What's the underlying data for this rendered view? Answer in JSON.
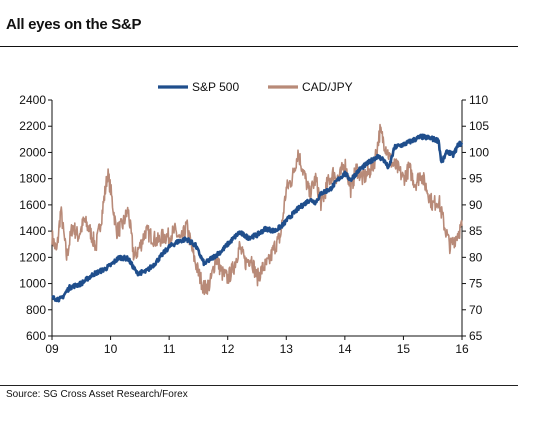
{
  "title": "All eyes on the S&P",
  "source": "Source: SG Cross Asset Research/Forex",
  "chart_data": {
    "type": "line",
    "title": "All eyes on the S&P",
    "x_tick_labels": [
      "09",
      "10",
      "11",
      "12",
      "13",
      "14",
      "15",
      "16"
    ],
    "xlim": [
      2009.0,
      2016.0
    ],
    "y_left_ticks": [
      "2400",
      "2200",
      "2000",
      "1800",
      "1600",
      "1400",
      "1200",
      "1000",
      "800",
      "600"
    ],
    "y_left_lim": [
      600,
      2400
    ],
    "y_right_ticks": [
      "110",
      "105",
      "100",
      "95",
      "90",
      "85",
      "80",
      "75",
      "70",
      "65"
    ],
    "y_right_lim": [
      65,
      110
    ],
    "grid": false,
    "legend_position": "top-center",
    "series": [
      {
        "name": "S&P 500",
        "axis": "left",
        "color": "#1f4e8c",
        "x": [
          2009.0,
          2009.15,
          2009.3,
          2009.5,
          2009.7,
          2009.9,
          2010.0,
          2010.15,
          2010.3,
          2010.45,
          2010.6,
          2010.75,
          2010.9,
          2011.0,
          2011.15,
          2011.3,
          2011.45,
          2011.6,
          2011.75,
          2011.9,
          2012.0,
          2012.2,
          2012.35,
          2012.5,
          2012.65,
          2012.8,
          2012.95,
          2013.0,
          2013.2,
          2013.4,
          2013.5,
          2013.6,
          2013.75,
          2013.9,
          2014.0,
          2014.1,
          2014.25,
          2014.4,
          2014.55,
          2014.65,
          2014.75,
          2014.85,
          2015.0,
          2015.15,
          2015.3,
          2015.45,
          2015.6,
          2015.65,
          2015.75,
          2015.85,
          2015.95,
          2016.0
        ],
        "y": [
          890,
          880,
          970,
          1000,
          1070,
          1110,
          1140,
          1200,
          1190,
          1080,
          1090,
          1150,
          1230,
          1280,
          1320,
          1340,
          1290,
          1150,
          1200,
          1250,
          1300,
          1390,
          1350,
          1370,
          1420,
          1400,
          1450,
          1480,
          1570,
          1640,
          1620,
          1690,
          1720,
          1800,
          1840,
          1790,
          1870,
          1920,
          1970,
          1950,
          1880,
          2040,
          2060,
          2090,
          2120,
          2110,
          2090,
          1920,
          2010,
          1980,
          2070,
          2060
        ]
      },
      {
        "name": "CAD/JPY",
        "axis": "right",
        "color": "#b88a78",
        "x": [
          2009.0,
          2009.08,
          2009.15,
          2009.25,
          2009.35,
          2009.45,
          2009.55,
          2009.65,
          2009.75,
          2009.85,
          2009.95,
          2010.0,
          2010.1,
          2010.2,
          2010.3,
          2010.4,
          2010.5,
          2010.6,
          2010.7,
          2010.8,
          2010.9,
          2011.0,
          2011.1,
          2011.2,
          2011.3,
          2011.4,
          2011.5,
          2011.6,
          2011.7,
          2011.8,
          2011.9,
          2012.0,
          2012.1,
          2012.2,
          2012.3,
          2012.4,
          2012.5,
          2012.6,
          2012.7,
          2012.8,
          2012.9,
          2013.0,
          2013.1,
          2013.2,
          2013.3,
          2013.4,
          2013.5,
          2013.6,
          2013.7,
          2013.8,
          2013.9,
          2014.0,
          2014.1,
          2014.2,
          2014.3,
          2014.4,
          2014.5,
          2014.55,
          2014.6,
          2014.7,
          2014.8,
          2014.9,
          2015.0,
          2015.1,
          2015.2,
          2015.3,
          2015.4,
          2015.5,
          2015.6,
          2015.7,
          2015.75,
          2015.8,
          2015.9,
          2016.0
        ],
        "y": [
          84,
          81,
          89,
          80,
          86,
          84,
          87,
          85,
          82,
          88,
          96,
          93,
          85,
          86,
          89,
          80,
          82,
          85,
          84,
          83,
          84,
          84,
          85,
          83,
          86,
          81,
          77,
          74,
          75,
          80,
          77,
          76,
          78,
          82,
          79,
          80,
          76,
          78,
          79,
          82,
          84,
          93,
          95,
          100,
          96,
          92,
          95,
          90,
          94,
          96,
          95,
          98,
          93,
          97,
          95,
          96,
          98,
          101,
          104,
          101,
          98,
          97,
          95,
          97,
          94,
          96,
          93,
          90,
          91,
          86,
          84,
          82,
          84,
          86
        ]
      }
    ]
  }
}
